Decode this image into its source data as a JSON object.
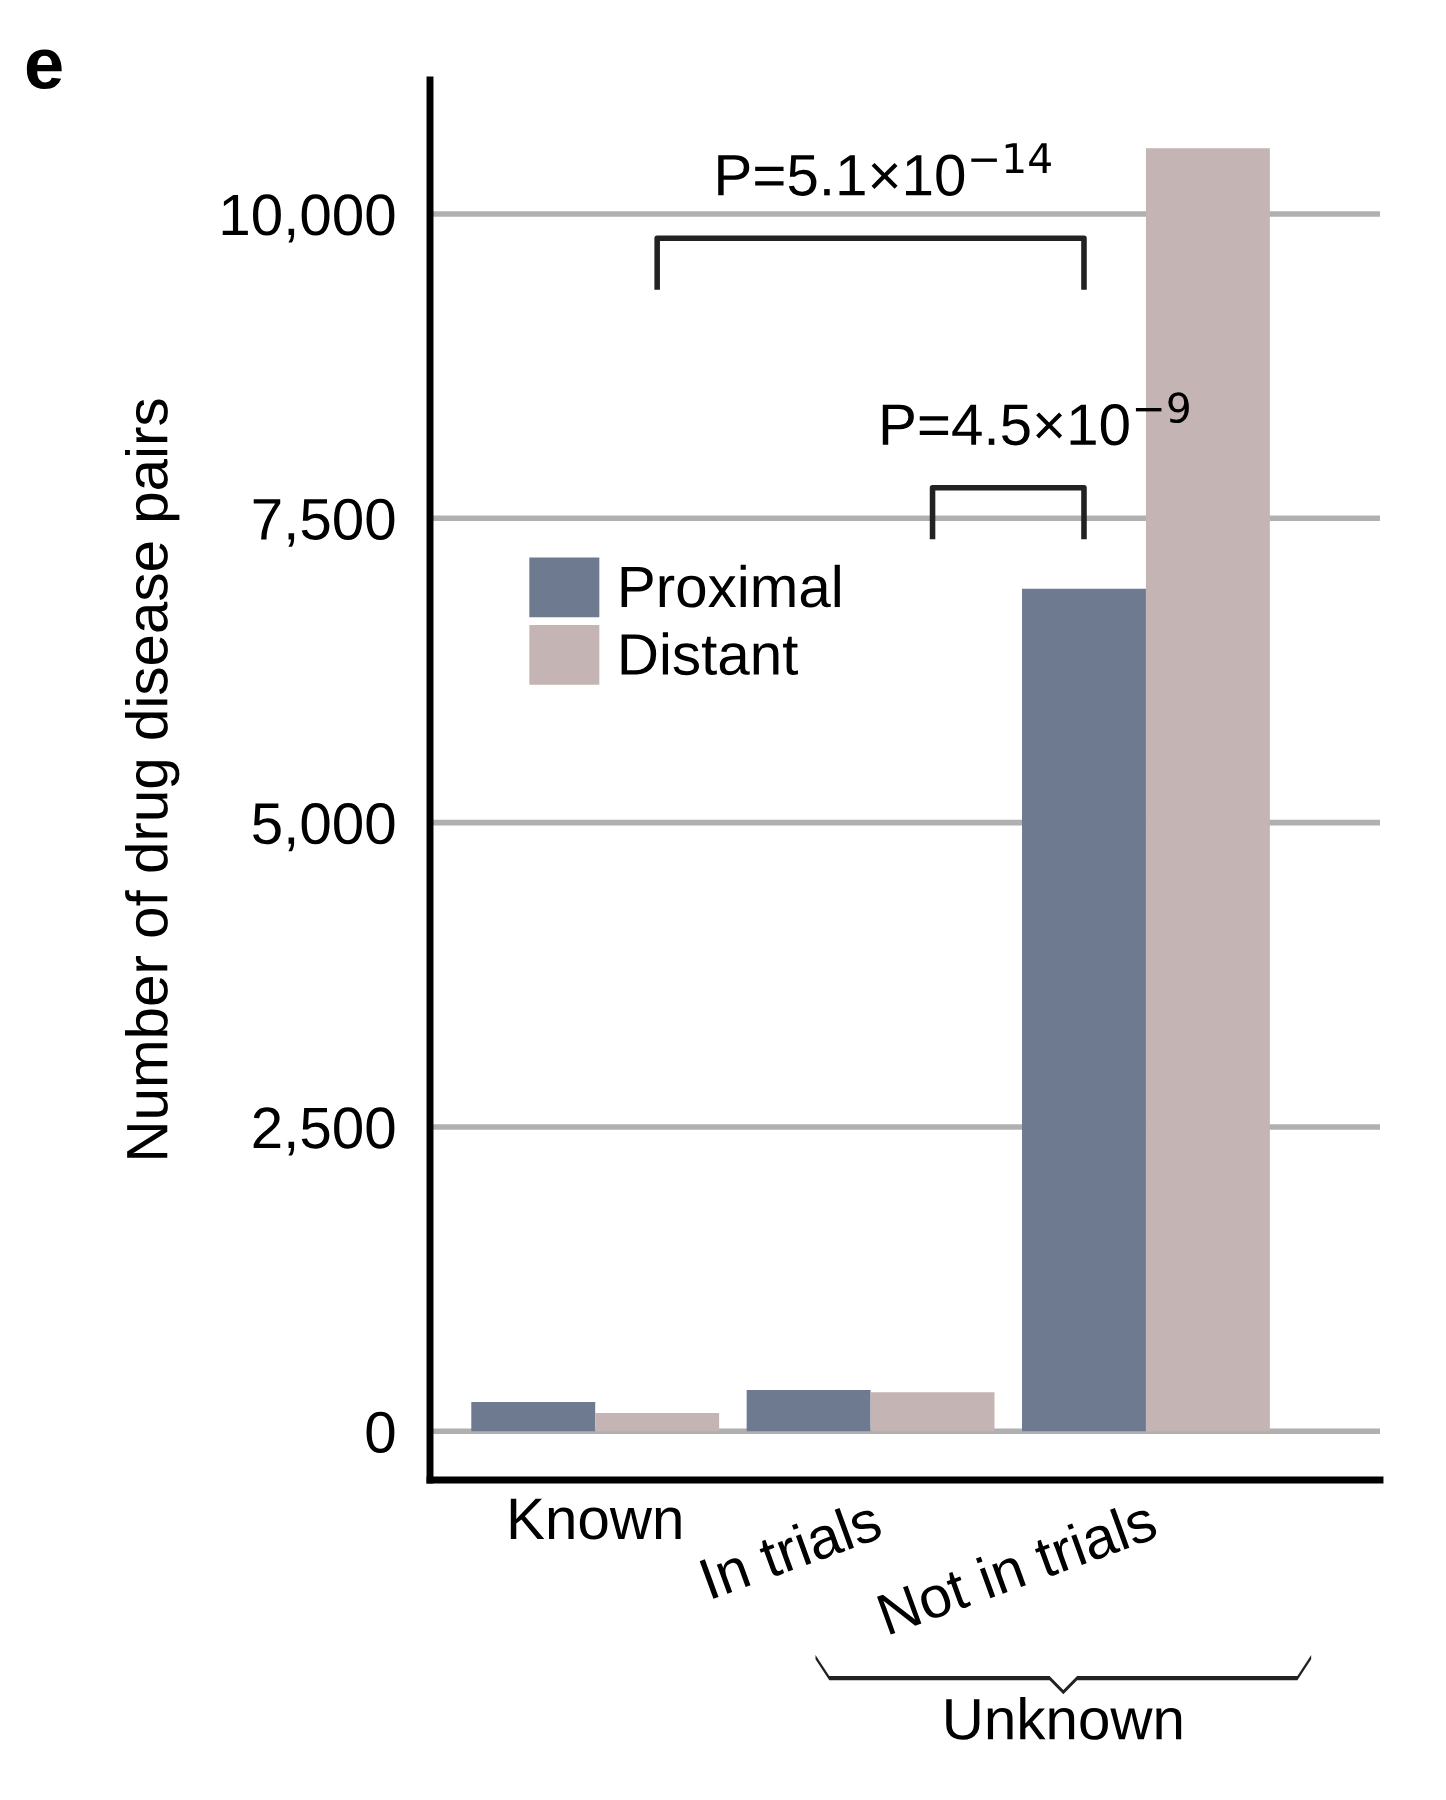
{
  "chart_data": {
    "type": "bar",
    "ylabel": "Number of drug disease pairs",
    "categories": [
      "Known",
      "In trials",
      "Not in trials"
    ],
    "series": [
      {
        "name": "Proximal",
        "color": "#6e7a8f",
        "values": [
          240,
          340,
          6920
        ]
      },
      {
        "name": "Distant",
        "color": "#c4b4b3",
        "values": [
          150,
          320,
          10540
        ]
      }
    ],
    "ylim": [
      -400,
      11100
    ],
    "yticks": [
      {
        "value": 0,
        "label": "0"
      },
      {
        "value": 2500,
        "label": "2,500"
      },
      {
        "value": 5000,
        "label": "5,000"
      },
      {
        "value": 7500,
        "label": "7,500"
      },
      {
        "value": 10000,
        "label": "10,000"
      }
    ],
    "grid": "y",
    "legend": "left",
    "annotations": [
      "e",
      "P=5.1×10$^{−14}$",
      "P=4.5×10$^{−9}$",
      "Unknown"
    ]
  }
}
